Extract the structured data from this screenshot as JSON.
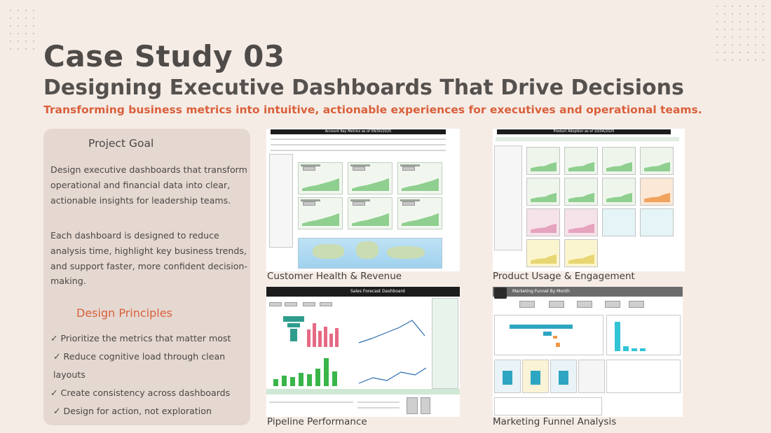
{
  "header": {
    "title": "Case Study 03",
    "subtitle": "Designing Executive Dashboards That Drive Decisions",
    "tagline": "Transforming business metrics into intuitive, actionable experiences for executives and operational teams."
  },
  "goal_card": {
    "heading": "Project Goal",
    "paragraph_1": "Design executive dashboards that transform operational and financial data into clear, actionable insights for leadership teams.",
    "paragraph_2": "Each dashboard is designed to reduce analysis time, highlight key business trends, and support faster, more confident decision-making.",
    "principles_heading": "Design Principles",
    "principles": [
      "✓ Prioritize the metrics that matter most",
      "✓ Reduce cognitive load through clean layouts",
      "✓ Create consistency across dashboards",
      "✓ Design for action, not exploration"
    ]
  },
  "screenshots": [
    {
      "caption": "Customer Health & Revenue",
      "inner_title": "Account Key Metrics as of 09/30/2025"
    },
    {
      "caption": "Product Usage & Engagement",
      "inner_title": "Product Adoption as of 10/04/2025"
    },
    {
      "caption": "Pipeline Performance",
      "inner_title": "Sales Forecast Dashboard"
    },
    {
      "caption": "Marketing Funnel Analysis",
      "inner_title": "Marketing Funnel By Month"
    }
  ],
  "colors": {
    "background": "#f6ece6",
    "accent": "#d9603b",
    "card": "#e5d8d1",
    "text": "#4a4744"
  }
}
